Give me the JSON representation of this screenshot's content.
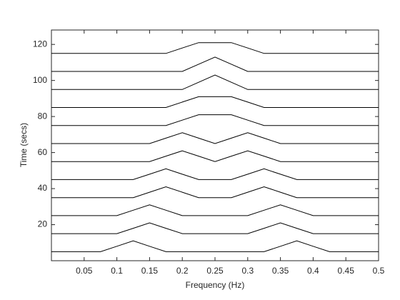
{
  "chart_data": {
    "type": "waterfall",
    "xlabel": "Frequency (Hz)",
    "ylabel": "Time (secs)",
    "color": "#000000",
    "x": [
      0,
      0.025,
      0.05,
      0.075,
      0.1,
      0.125,
      0.15,
      0.175,
      0.2,
      0.225,
      0.25,
      0.275,
      0.3,
      0.325,
      0.35,
      0.375,
      0.4,
      0.425,
      0.45,
      0.475,
      0.5
    ],
    "series": [
      {
        "values": [
          5,
          5,
          5,
          5,
          8,
          11,
          8,
          5,
          5,
          5,
          5,
          5,
          5,
          5,
          8,
          11,
          8,
          5,
          5,
          5,
          5
        ]
      },
      {
        "values": [
          15,
          15,
          15,
          15,
          15,
          18,
          21,
          18,
          15,
          15,
          15,
          15,
          15,
          18,
          21,
          18,
          15,
          15,
          15,
          15,
          15
        ]
      },
      {
        "values": [
          25,
          25,
          25,
          25,
          25,
          28,
          31,
          28,
          25,
          25,
          25,
          25,
          25,
          28,
          31,
          28,
          25,
          25,
          25,
          25,
          25
        ]
      },
      {
        "values": [
          35,
          35,
          35,
          35,
          35,
          35,
          38,
          41,
          38,
          35,
          35,
          35,
          38,
          41,
          38,
          35,
          35,
          35,
          35,
          35,
          35
        ]
      },
      {
        "values": [
          45,
          45,
          45,
          45,
          45,
          45,
          48,
          51,
          48,
          45,
          45,
          45,
          48,
          51,
          48,
          45,
          45,
          45,
          45,
          45,
          45
        ]
      },
      {
        "values": [
          55,
          55,
          55,
          55,
          55,
          55,
          55,
          58,
          61,
          58,
          55,
          58,
          61,
          58,
          55,
          55,
          55,
          55,
          55,
          55,
          55
        ]
      },
      {
        "values": [
          65,
          65,
          65,
          65,
          65,
          65,
          65,
          68,
          71,
          68,
          65,
          68,
          71,
          68,
          65,
          65,
          65,
          65,
          65,
          65,
          65
        ]
      },
      {
        "values": [
          75,
          75,
          75,
          75,
          75,
          75,
          75,
          75,
          78,
          81,
          81,
          81,
          78,
          75,
          75,
          75,
          75,
          75,
          75,
          75,
          75
        ]
      },
      {
        "values": [
          85,
          85,
          85,
          85,
          85,
          85,
          85,
          85,
          88,
          91,
          91,
          91,
          88,
          85,
          85,
          85,
          85,
          85,
          85,
          85,
          85
        ]
      },
      {
        "values": [
          95,
          95,
          95,
          95,
          95,
          95,
          95,
          95,
          95,
          99,
          103,
          99,
          95,
          95,
          95,
          95,
          95,
          95,
          95,
          95,
          95
        ]
      },
      {
        "values": [
          105,
          105,
          105,
          105,
          105,
          105,
          105,
          105,
          105,
          109,
          113,
          109,
          105,
          105,
          105,
          105,
          105,
          105,
          105,
          105,
          105
        ]
      },
      {
        "values": [
          115,
          115,
          115,
          115,
          115,
          115,
          115,
          115,
          118,
          121,
          121,
          121,
          118,
          115,
          115,
          115,
          115,
          115,
          115,
          115,
          115
        ]
      }
    ],
    "xlim": [
      0,
      0.5
    ],
    "xticks": [
      0.05,
      0.1,
      0.15,
      0.2,
      0.25,
      0.3,
      0.35,
      0.4,
      0.45,
      0.5
    ],
    "ylim": [
      0,
      128
    ],
    "yticks": [
      20,
      40,
      60,
      80,
      100,
      120
    ],
    "grid": false
  }
}
